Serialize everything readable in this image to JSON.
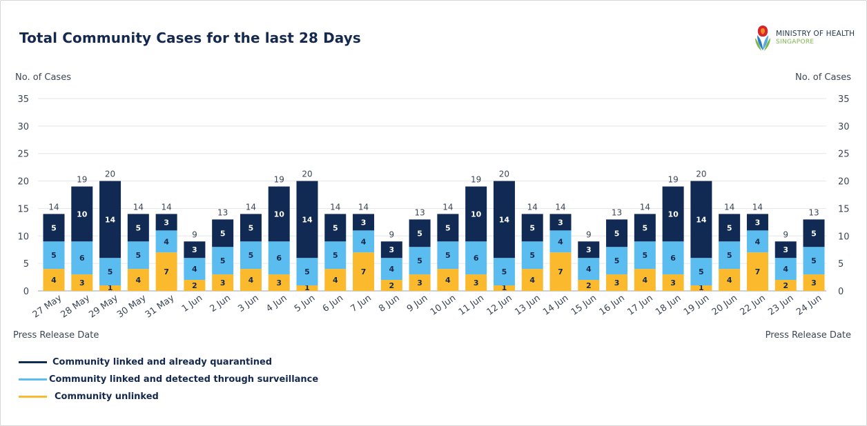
{
  "chart_data": {
    "type": "bar",
    "stacked": true,
    "title": "Total Community Cases for the last 28 Days",
    "ylabel_left": "No. of Cases",
    "ylabel_right": "No. of Cases",
    "xlabel": "Press Release Date",
    "ylim": [
      0,
      35
    ],
    "yticks": [
      "0",
      "5",
      "10",
      "15",
      "20",
      "25",
      "30",
      "35"
    ],
    "grid": true,
    "legend_position": "bottom-left",
    "categories": [
      "27 May",
      "28 May",
      "29 May",
      "30 May",
      "31 May",
      "1 Jun",
      "2 Jun",
      "3 Jun",
      "4 Jun",
      "5 Jun",
      "6 Jun",
      "7 Jun",
      "8 Jun",
      "9 Jun",
      "10 Jun",
      "11 Jun",
      "12 Jun",
      "13 Jun",
      "14 Jun",
      "15 Jun",
      "16 Jun",
      "17 Jun",
      "18 Jun",
      "19 Jun",
      "20 Jun",
      "22 Jun",
      "23 Jun",
      "24 Jun"
    ],
    "series": [
      {
        "name": "Community unlinked",
        "color": "#fbb92d",
        "values": [
          4,
          3,
          1,
          4,
          7,
          2,
          3,
          4,
          3,
          1,
          4,
          7,
          2,
          3,
          4,
          3,
          1,
          4,
          7,
          2,
          3,
          4,
          3,
          1,
          4,
          7,
          2,
          3
        ]
      },
      {
        "name": "Community linked and detected through surveillance",
        "color": "#5bbcf0",
        "values": [
          5,
          6,
          5,
          5,
          4,
          4,
          5,
          5,
          6,
          5,
          5,
          4,
          4,
          5,
          5,
          6,
          5,
          5,
          4,
          4,
          5,
          5,
          6,
          5,
          5,
          4,
          4,
          5
        ]
      },
      {
        "name": "Community linked and already quarantined",
        "color": "#102a54",
        "values": [
          5,
          10,
          14,
          5,
          3,
          3,
          5,
          5,
          10,
          14,
          5,
          3,
          3,
          5,
          5,
          10,
          14,
          5,
          3,
          3,
          5,
          5,
          10,
          14,
          5,
          3,
          3,
          5
        ]
      }
    ],
    "totals": [
      14,
      19,
      20,
      14,
      14,
      9,
      13,
      14,
      19,
      20,
      14,
      14,
      9,
      13,
      14,
      19,
      20,
      14,
      14,
      9,
      13,
      14,
      19,
      20,
      14,
      14,
      9,
      13
    ],
    "legend_order": [
      {
        "label": "Community linked and already quarantined",
        "color": "#102a54"
      },
      {
        "label": "Community linked and detected through surveillance",
        "color": "#5bbcf0"
      },
      {
        "label": "Community unlinked",
        "color": "#fbb92d"
      }
    ]
  },
  "logo": {
    "line1": "MINISTRY OF HEALTH",
    "line2": "SINGAPORE"
  },
  "colors": {
    "title": "#14294d",
    "grid": "#e3e6ea",
    "axis_text": "#3b4654"
  }
}
